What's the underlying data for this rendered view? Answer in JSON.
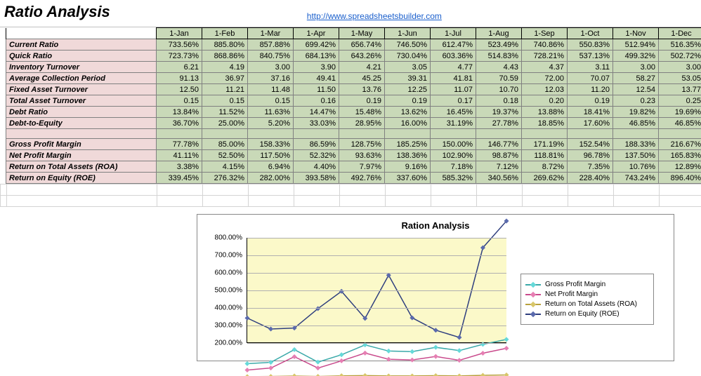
{
  "title": "Ratio Analysis",
  "link_text": "http://www.spreadsheetsbuilder.com",
  "months": [
    "1-Jan",
    "1-Feb",
    "1-Mar",
    "1-Apr",
    "1-May",
    "1-Jun",
    "1-Jul",
    "1-Aug",
    "1-Sep",
    "1-Oct",
    "1-Nov",
    "1-Dec"
  ],
  "groups": [
    {
      "rows": [
        {
          "label": "Current Ratio",
          "values": [
            "733.56%",
            "885.80%",
            "857.88%",
            "699.42%",
            "656.74%",
            "746.50%",
            "612.47%",
            "523.49%",
            "740.86%",
            "550.83%",
            "512.94%",
            "516.35%"
          ]
        },
        {
          "label": "Quick Ratio",
          "values": [
            "723.73%",
            "868.86%",
            "840.75%",
            "684.13%",
            "643.26%",
            "730.04%",
            "603.36%",
            "514.83%",
            "728.21%",
            "537.13%",
            "499.32%",
            "502.72%"
          ]
        },
        {
          "label": "Inventory Turnover",
          "values": [
            "6.21",
            "4.19",
            "3.00",
            "3.90",
            "4.21",
            "3.05",
            "4.77",
            "4.43",
            "4.37",
            "3.11",
            "3.00",
            "3.00"
          ]
        },
        {
          "label": "Average Collection Period",
          "values": [
            "91.13",
            "36.97",
            "37.16",
            "49.41",
            "45.25",
            "39.31",
            "41.81",
            "70.59",
            "72.00",
            "70.07",
            "58.27",
            "53.05"
          ]
        },
        {
          "label": "Fixed Asset Turnover",
          "values": [
            "12.50",
            "11.21",
            "11.48",
            "11.50",
            "13.76",
            "12.25",
            "11.07",
            "10.70",
            "12.03",
            "11.20",
            "12.54",
            "13.77"
          ]
        },
        {
          "label": "Total Asset Turnover",
          "values": [
            "0.15",
            "0.15",
            "0.15",
            "0.16",
            "0.19",
            "0.19",
            "0.17",
            "0.18",
            "0.20",
            "0.19",
            "0.23",
            "0.25"
          ]
        },
        {
          "label": "Debt Ratio",
          "values": [
            "13.84%",
            "11.52%",
            "11.63%",
            "14.47%",
            "15.48%",
            "13.62%",
            "16.45%",
            "19.37%",
            "13.88%",
            "18.41%",
            "19.82%",
            "19.69%"
          ]
        },
        {
          "label": "Debt-to-Equity",
          "values": [
            "36.70%",
            "25.00%",
            "5.20%",
            "33.03%",
            "28.95%",
            "16.00%",
            "31.19%",
            "27.78%",
            "18.85%",
            "17.60%",
            "46.85%",
            "46.85%"
          ]
        }
      ]
    },
    {
      "rows": [
        {
          "label": "Gross Profit Margin",
          "values": [
            "77.78%",
            "85.00%",
            "158.33%",
            "86.59%",
            "128.75%",
            "185.25%",
            "150.00%",
            "146.77%",
            "171.19%",
            "152.54%",
            "188.33%",
            "216.67%"
          ]
        },
        {
          "label": "Net Profit Margin",
          "values": [
            "41.11%",
            "52.50%",
            "117.50%",
            "52.32%",
            "93.63%",
            "138.36%",
            "102.90%",
            "98.87%",
            "118.81%",
            "96.78%",
            "137.50%",
            "165.83%"
          ]
        },
        {
          "label": "Return on Total Assets (ROA)",
          "values": [
            "3.38%",
            "4.15%",
            "6.94%",
            "4.40%",
            "7.97%",
            "9.16%",
            "7.18%",
            "7.12%",
            "8.72%",
            "7.35%",
            "10.76%",
            "12.89%"
          ]
        },
        {
          "label": "Return on Equity (ROE)",
          "values": [
            "339.45%",
            "276.32%",
            "282.00%",
            "393.58%",
            "492.76%",
            "337.60%",
            "585.32%",
            "340.56%",
            "269.62%",
            "228.40%",
            "743.24%",
            "896.40%"
          ]
        }
      ]
    }
  ],
  "chart": {
    "title": "Ration Analysis",
    "type": "line",
    "ylim": [
      200,
      800
    ],
    "ytick_step": 100,
    "yticks": [
      "200.00%",
      "300.00%",
      "400.00%",
      "500.00%",
      "600.00%",
      "700.00%",
      "800.00%"
    ],
    "background_color": "#fbf9c9",
    "grid_color": "#b0b0b0",
    "series": [
      {
        "name": "Gross Profit Margin",
        "color": "#3aa9a9",
        "marker": "#66d9d9",
        "values": [
          77.78,
          85.0,
          158.33,
          86.59,
          128.75,
          185.25,
          150.0,
          146.77,
          171.19,
          152.54,
          188.33,
          216.67
        ]
      },
      {
        "name": "Net Profit Margin",
        "color": "#c94a8c",
        "marker": "#e67fb3",
        "values": [
          41.11,
          52.5,
          117.5,
          52.32,
          93.63,
          138.36,
          102.9,
          98.87,
          118.81,
          96.78,
          137.5,
          165.83
        ]
      },
      {
        "name": "Return on Total Assets (ROA)",
        "color": "#b8a13d",
        "marker": "#d8c66a",
        "values": [
          3.38,
          4.15,
          6.94,
          4.4,
          7.97,
          9.16,
          7.18,
          7.12,
          8.72,
          7.35,
          10.76,
          12.89
        ]
      },
      {
        "name": "Return on Equity (ROE)",
        "color": "#2e3e7e",
        "marker": "#5a6aad",
        "values": [
          339.45,
          276.32,
          282.0,
          393.58,
          492.76,
          337.6,
          585.32,
          340.56,
          269.62,
          228.4,
          743.24,
          896.4
        ]
      }
    ]
  }
}
